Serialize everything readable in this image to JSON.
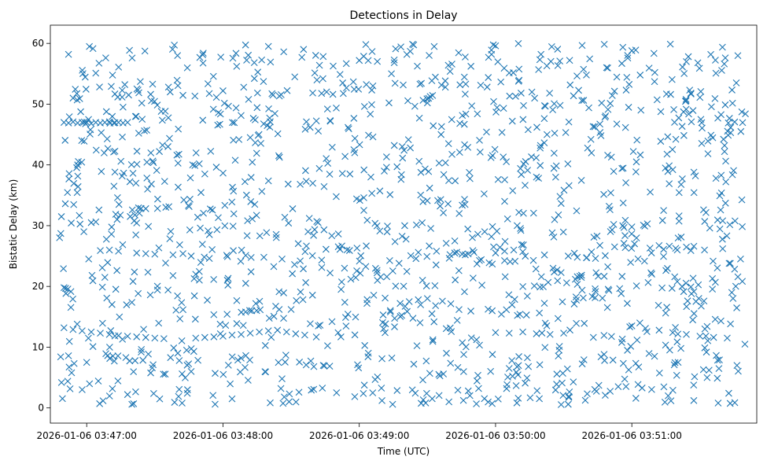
{
  "chart_data": {
    "type": "scatter",
    "title": "Detections in Delay",
    "xlabel": "Time (UTC)",
    "ylabel": "Bistatic Delay (km)",
    "x_unit": "UTC time",
    "xlim": [
      "2026-01-06 03:46:44",
      "2026-01-06 03:51:55"
    ],
    "ylim": [
      -2.5,
      63
    ],
    "xticks": [
      {
        "value": "2026-01-06 03:47:00",
        "label": "2026-01-06 03:47:00"
      },
      {
        "value": "2026-01-06 03:48:00",
        "label": "2026-01-06 03:48:00"
      },
      {
        "value": "2026-01-06 03:49:00",
        "label": "2026-01-06 03:49:00"
      },
      {
        "value": "2026-01-06 03:50:00",
        "label": "2026-01-06 03:50:00"
      },
      {
        "value": "2026-01-06 03:51:00",
        "label": "2026-01-06 03:51:00"
      }
    ],
    "yticks": [
      0,
      10,
      20,
      30,
      40,
      50,
      60
    ],
    "ytick_labels": [
      "0",
      "10",
      "20",
      "30",
      "40",
      "50",
      "60"
    ],
    "grid": false,
    "legend": "none",
    "marker": "x",
    "color": "#1f77b4",
    "series": [
      {
        "time_range": [
          "2026-01-06 03:46:48",
          "2026-01-06 03:51:50"
        ],
        "points": [
          [
            "2026-01-06 03:46:50",
            47.0
          ],
          [
            "2026-01-06 03:46:52",
            46.9
          ],
          [
            "2026-01-06 03:46:54",
            47.1
          ],
          [
            "2026-01-06 03:46:56",
            46.9
          ],
          [
            "2026-01-06 03:46:58",
            47.0
          ],
          [
            "2026-01-06 03:47:00",
            47.0
          ],
          [
            "2026-01-06 03:47:02",
            46.8
          ],
          [
            "2026-01-06 03:47:04",
            47.0
          ],
          [
            "2026-01-06 03:47:06",
            46.9
          ],
          [
            "2026-01-06 03:47:08",
            47.0
          ],
          [
            "2026-01-06 03:47:10",
            47.1
          ],
          [
            "2026-01-06 03:47:12",
            46.9
          ],
          [
            "2026-01-06 03:47:14",
            47.0
          ],
          [
            "2026-01-06 03:47:16",
            46.9
          ],
          [
            "2026-01-06 03:47:18",
            47.0
          ],
          [
            "2026-01-06 03:46:50",
            13.2
          ],
          [
            "2026-01-06 03:46:54",
            12.9
          ],
          [
            "2026-01-06 03:46:58",
            12.7
          ],
          [
            "2026-01-06 03:47:02",
            12.5
          ],
          [
            "2026-01-06 03:47:06",
            12.3
          ],
          [
            "2026-01-06 03:47:10",
            12.1
          ],
          [
            "2026-01-06 03:47:14",
            11.9
          ],
          [
            "2026-01-06 03:47:18",
            11.8
          ],
          [
            "2026-01-06 03:47:22",
            11.7
          ],
          [
            "2026-01-06 03:47:26",
            11.6
          ],
          [
            "2026-01-06 03:47:30",
            11.5
          ],
          [
            "2026-01-06 03:47:34",
            11.4
          ],
          [
            "2026-01-06 03:47:06",
            25.9
          ],
          [
            "2026-01-06 03:47:10",
            26.0
          ],
          [
            "2026-01-06 03:47:14",
            25.8
          ],
          [
            "2026-01-06 03:47:22",
            25.5
          ],
          [
            "2026-01-06 03:47:26",
            25.4
          ],
          [
            "2026-01-06 03:47:30",
            25.3
          ],
          [
            "2026-01-06 03:47:38",
            25.2
          ],
          [
            "2026-01-06 03:47:46",
            25.0
          ],
          [
            "2026-01-06 03:47:54",
            24.6
          ],
          [
            "2026-01-06 03:48:02",
            24.9
          ],
          [
            "2026-01-06 03:48:10",
            25.1
          ],
          [
            "2026-01-06 03:48:18",
            24.8
          ],
          [
            "2026-01-06 03:48:26",
            24.5
          ],
          [
            "2026-01-06 03:48:34",
            24.2
          ],
          [
            "2026-01-06 03:47:48",
            11.5
          ],
          [
            "2026-01-06 03:47:52",
            11.6
          ],
          [
            "2026-01-06 03:47:56",
            11.7
          ],
          [
            "2026-01-06 03:48:00",
            11.8
          ],
          [
            "2026-01-06 03:48:04",
            12.0
          ],
          [
            "2026-01-06 03:48:08",
            12.1
          ],
          [
            "2026-01-06 03:48:12",
            12.3
          ],
          [
            "2026-01-06 03:48:16",
            12.5
          ],
          [
            "2026-01-06 03:48:20",
            12.7
          ],
          [
            "2026-01-06 03:48:24",
            12.8
          ],
          [
            "2026-01-06 03:48:28",
            12.5
          ],
          [
            "2026-01-06 03:48:32",
            12.2
          ],
          [
            "2026-01-06 03:48:36",
            12.0
          ],
          [
            "2026-01-06 03:48:42",
            13.5
          ],
          [
            "2026-01-06 03:48:48",
            14.2
          ],
          [
            "2026-01-06 03:48:54",
            14.9
          ],
          [
            "2026-01-06 03:49:18",
            17.2
          ],
          [
            "2026-01-06 03:49:22",
            17.5
          ],
          [
            "2026-01-06 03:49:26",
            17.8
          ],
          [
            "2026-01-06 03:49:30",
            18.0
          ],
          [
            "2026-01-06 03:49:26",
            25.6
          ],
          [
            "2026-01-06 03:49:34",
            25.8
          ],
          [
            "2026-01-06 03:49:42",
            25.5
          ],
          [
            "2026-01-06 03:49:50",
            25.9
          ],
          [
            "2026-01-06 03:50:00",
            25.5
          ],
          [
            "2026-01-06 03:50:04",
            25.8
          ],
          [
            "2026-01-06 03:50:08",
            26.0
          ],
          [
            "2026-01-06 03:50:12",
            25.7
          ],
          [
            "2026-01-06 03:50:00",
            12.4
          ],
          [
            "2026-01-06 03:50:06",
            12.3
          ],
          [
            "2026-01-06 03:50:12",
            12.5
          ],
          [
            "2026-01-06 03:50:18",
            12.2
          ],
          [
            "2026-01-06 03:50:24",
            12.1
          ],
          [
            "2026-01-06 03:50:30",
            12.3
          ],
          [
            "2026-01-06 03:50:32",
            25.0
          ],
          [
            "2026-01-06 03:50:36",
            24.8
          ],
          [
            "2026-01-06 03:50:40",
            24.7
          ],
          [
            "2026-01-06 03:50:44",
            24.6
          ],
          [
            "2026-01-06 03:50:52",
            30.2
          ],
          [
            "2026-01-06 03:50:56",
            30.0
          ],
          [
            "2026-01-06 03:51:00",
            29.8
          ],
          [
            "2026-01-06 03:51:00",
            13.5
          ],
          [
            "2026-01-06 03:51:06",
            13.1
          ],
          [
            "2026-01-06 03:51:12",
            12.8
          ],
          [
            "2026-01-06 03:51:18",
            12.4
          ],
          [
            "2026-01-06 03:51:24",
            12.1
          ],
          [
            "2026-01-06 03:51:30",
            11.8
          ],
          [
            "2026-01-06 03:51:36",
            11.6
          ],
          [
            "2026-01-06 03:51:42",
            11.5
          ],
          [
            "2026-01-06 03:51:08",
            26.3
          ],
          [
            "2026-01-06 03:51:14",
            26.1
          ],
          [
            "2026-01-06 03:51:20",
            26.0
          ],
          [
            "2026-01-06 03:51:26",
            25.9
          ],
          [
            "2026-01-06 03:51:32",
            26.0
          ],
          [
            "2026-01-06 03:51:40",
            26.2
          ],
          [
            "2026-01-06 03:46:52",
            58.2
          ],
          [
            "2026-01-06 03:47:04",
            55.1
          ],
          [
            "2026-01-06 03:47:20",
            57.6
          ],
          [
            "2026-01-06 03:47:40",
            58.0
          ],
          [
            "2026-01-06 03:48:00",
            52.2
          ],
          [
            "2026-01-06 03:48:20",
            59.5
          ],
          [
            "2026-01-06 03:48:44",
            54.2
          ],
          [
            "2026-01-06 03:49:00",
            57.2
          ],
          [
            "2026-01-06 03:49:16",
            59.1
          ],
          [
            "2026-01-06 03:49:40",
            55.4
          ],
          [
            "2026-01-06 03:50:00",
            59.6
          ],
          [
            "2026-01-06 03:50:20",
            58.2
          ],
          [
            "2026-01-06 03:50:40",
            54.8
          ],
          [
            "2026-01-06 03:51:00",
            58.8
          ],
          [
            "2026-01-06 03:51:24",
            57.0
          ],
          [
            "2026-01-06 03:51:46",
            53.5
          ],
          [
            "2026-01-06 03:46:56",
            40.0
          ],
          [
            "2026-01-06 03:47:12",
            36.5
          ],
          [
            "2026-01-06 03:47:32",
            42.2
          ],
          [
            "2026-01-06 03:47:52",
            38.5
          ],
          [
            "2026-01-06 03:48:12",
            44.5
          ],
          [
            "2026-01-06 03:48:34",
            36.8
          ],
          [
            "2026-01-06 03:48:58",
            42.0
          ],
          [
            "2026-01-06 03:49:12",
            39.6
          ],
          [
            "2026-01-06 03:49:36",
            45.0
          ],
          [
            "2026-01-06 03:49:58",
            41.2
          ],
          [
            "2026-01-06 03:50:18",
            38.0
          ],
          [
            "2026-01-06 03:50:42",
            44.2
          ],
          [
            "2026-01-06 03:51:02",
            40.5
          ],
          [
            "2026-01-06 03:51:28",
            38.2
          ],
          [
            "2026-01-06 03:51:48",
            45.5
          ],
          [
            "2026-01-06 03:46:50",
            19.8
          ],
          [
            "2026-01-06 03:47:08",
            21.5
          ],
          [
            "2026-01-06 03:47:28",
            18.6
          ],
          [
            "2026-01-06 03:47:48",
            22.0
          ],
          [
            "2026-01-06 03:48:10",
            20.5
          ],
          [
            "2026-01-06 03:48:30",
            16.2
          ],
          [
            "2026-01-06 03:48:52",
            19.5
          ],
          [
            "2026-01-06 03:49:08",
            21.0
          ],
          [
            "2026-01-06 03:49:32",
            15.5
          ],
          [
            "2026-01-06 03:49:54",
            20.2
          ],
          [
            "2026-01-06 03:50:14",
            18.4
          ],
          [
            "2026-01-06 03:50:36",
            21.6
          ],
          [
            "2026-01-06 03:50:58",
            17.2
          ],
          [
            "2026-01-06 03:51:20",
            20.8
          ],
          [
            "2026-01-06 03:51:44",
            19.0
          ],
          [
            "2026-01-06 03:46:58",
            3.0
          ],
          [
            "2026-01-06 03:47:18",
            2.2
          ],
          [
            "2026-01-06 03:47:42",
            0.8
          ],
          [
            "2026-01-06 03:48:04",
            1.5
          ],
          [
            "2026-01-06 03:48:26",
            4.8
          ],
          [
            "2026-01-06 03:48:50",
            2.5
          ],
          [
            "2026-01-06 03:49:10",
            1.2
          ],
          [
            "2026-01-06 03:49:28",
            4.6
          ],
          [
            "2026-01-06 03:49:48",
            2.8
          ],
          [
            "2026-01-06 03:50:10",
            1.6
          ],
          [
            "2026-01-06 03:50:32",
            0.6
          ],
          [
            "2026-01-06 03:50:54",
            3.5
          ],
          [
            "2026-01-06 03:51:16",
            2.0
          ],
          [
            "2026-01-06 03:51:38",
            0.8
          ],
          [
            "2026-01-06 03:47:00",
            7.5
          ],
          [
            "2026-01-06 03:47:24",
            9.2
          ],
          [
            "2026-01-06 03:47:46",
            6.0
          ],
          [
            "2026-01-06 03:48:08",
            8.2
          ],
          [
            "2026-01-06 03:48:40",
            6.8
          ],
          [
            "2026-01-06 03:49:04",
            9.0
          ],
          [
            "2026-01-06 03:49:24",
            7.2
          ],
          [
            "2026-01-06 03:49:46",
            8.8
          ],
          [
            "2026-01-06 03:50:06",
            6.5
          ],
          [
            "2026-01-06 03:50:28",
            9.5
          ],
          [
            "2026-01-06 03:50:48",
            7.8
          ],
          [
            "2026-01-06 03:51:10",
            8.5
          ],
          [
            "2026-01-06 03:51:34",
            6.2
          ],
          [
            "2026-01-06 03:47:02",
            30.5
          ],
          [
            "2026-01-06 03:47:26",
            32.8
          ],
          [
            "2026-01-06 03:47:50",
            29.6
          ],
          [
            "2026-01-06 03:48:14",
            33.5
          ],
          [
            "2026-01-06 03:48:38",
            31.2
          ],
          [
            "2026-01-06 03:49:02",
            34.6
          ],
          [
            "2026-01-06 03:49:20",
            30.0
          ],
          [
            "2026-01-06 03:49:44",
            32.0
          ],
          [
            "2026-01-06 03:50:04",
            34.0
          ],
          [
            "2026-01-06 03:50:26",
            31.0
          ],
          [
            "2026-01-06 03:50:50",
            33.2
          ],
          [
            "2026-01-06 03:51:14",
            32.5
          ],
          [
            "2026-01-06 03:51:40",
            30.8
          ],
          [
            "2026-01-06 03:46:54",
            51.0
          ],
          [
            "2026-01-06 03:47:16",
            49.5
          ],
          [
            "2026-01-06 03:47:36",
            52.8
          ],
          [
            "2026-01-06 03:47:58",
            48.6
          ],
          [
            "2026-01-06 03:48:22",
            51.5
          ],
          [
            "2026-01-06 03:48:46",
            49.2
          ],
          [
            "2026-01-06 03:49:06",
            53.0
          ],
          [
            "2026-01-06 03:49:30",
            50.2
          ],
          [
            "2026-01-06 03:49:52",
            48.4
          ],
          [
            "2026-01-06 03:50:16",
            52.0
          ],
          [
            "2026-01-06 03:50:38",
            50.6
          ],
          [
            "2026-01-06 03:51:04",
            49.0
          ],
          [
            "2026-01-06 03:51:26",
            51.8
          ],
          [
            "2026-01-06 03:51:50",
            48.4
          ]
        ]
      }
    ]
  }
}
